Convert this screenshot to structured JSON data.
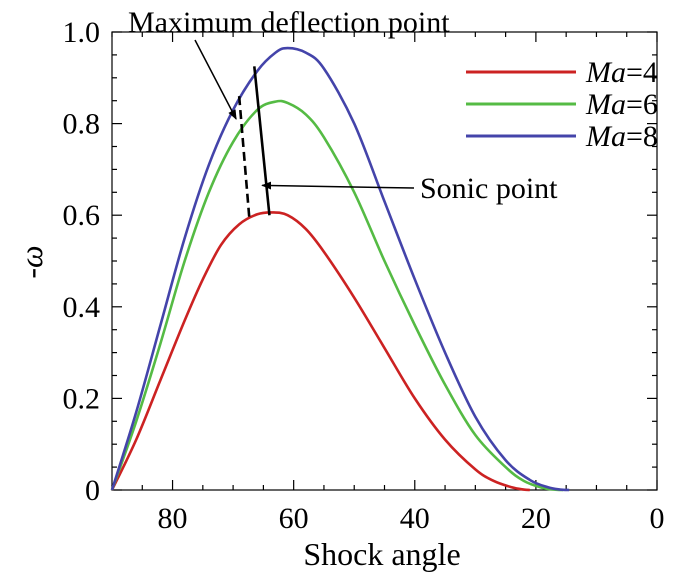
{
  "chart_data": {
    "type": "line",
    "title": "",
    "xlabel": "Shock angle",
    "ylabel": "-ω",
    "xlim": [
      90,
      0
    ],
    "ylim": [
      0,
      1.0
    ],
    "x_ticks": [
      80,
      60,
      40,
      20,
      0
    ],
    "x_tick_labels": [
      "80",
      "60",
      "40",
      "20",
      "0"
    ],
    "y_ticks": [
      0,
      0.2,
      0.4,
      0.6,
      0.8,
      1.0
    ],
    "y_tick_labels": [
      "0",
      "0.2",
      "0.4",
      "0.6",
      "0.8",
      "1.0"
    ],
    "grid": false,
    "legend_position": "top-right",
    "series": [
      {
        "name": "Ma=4",
        "legend_italic": "Ma",
        "legend_rest": "=4",
        "color": "#cc2222",
        "x": [
          90,
          86,
          82,
          78,
          75,
          72,
          69,
          66,
          63.5,
          61,
          58,
          55,
          50,
          45,
          40,
          35,
          30,
          27,
          24,
          22,
          21
        ],
        "y": [
          0,
          0.11,
          0.24,
          0.37,
          0.46,
          0.535,
          0.58,
          0.602,
          0.606,
          0.6,
          0.57,
          0.52,
          0.42,
          0.31,
          0.2,
          0.11,
          0.045,
          0.02,
          0.006,
          0.001,
          0
        ]
      },
      {
        "name": "Ma=6",
        "legend_italic": "Ma",
        "legend_rest": "=6",
        "color": "#55bb44",
        "x": [
          90,
          86,
          82,
          78,
          74,
          70,
          66,
          63,
          61,
          58,
          55,
          50,
          45,
          40,
          35,
          30,
          25,
          22,
          19,
          17,
          15.5
        ],
        "y": [
          0,
          0.15,
          0.32,
          0.5,
          0.65,
          0.76,
          0.83,
          0.848,
          0.845,
          0.82,
          0.77,
          0.65,
          0.5,
          0.36,
          0.23,
          0.12,
          0.05,
          0.02,
          0.005,
          0.001,
          0
        ]
      },
      {
        "name": "Ma=8",
        "legend_italic": "Ma",
        "legend_rest": "=8",
        "color": "#4444aa",
        "x": [
          90,
          86,
          82,
          78,
          74,
          70,
          66,
          63,
          61,
          58,
          55,
          50,
          45,
          40,
          35,
          30,
          25,
          21,
          18,
          16,
          14.5
        ],
        "y": [
          0,
          0.17,
          0.36,
          0.55,
          0.71,
          0.83,
          0.915,
          0.955,
          0.965,
          0.955,
          0.92,
          0.8,
          0.63,
          0.46,
          0.3,
          0.16,
          0.065,
          0.022,
          0.006,
          0.001,
          0
        ]
      }
    ],
    "marker_lines": [
      {
        "name": "maximum-deflection-line",
        "style": "dashed",
        "x": [
          69,
          67.3
        ],
        "y": [
          0.86,
          0.59
        ]
      },
      {
        "name": "sonic-line",
        "style": "solid",
        "x": [
          66.5,
          64
        ],
        "y": [
          0.925,
          0.6
        ]
      }
    ],
    "annotations": [
      {
        "name": "maximum-deflection-annotation",
        "text": "Maximum deflection point",
        "arrow_to": [
          69.5,
          0.81
        ]
      },
      {
        "name": "sonic-annotation",
        "text": "Sonic point",
        "arrow_to": [
          65.2,
          0.665
        ]
      }
    ]
  }
}
